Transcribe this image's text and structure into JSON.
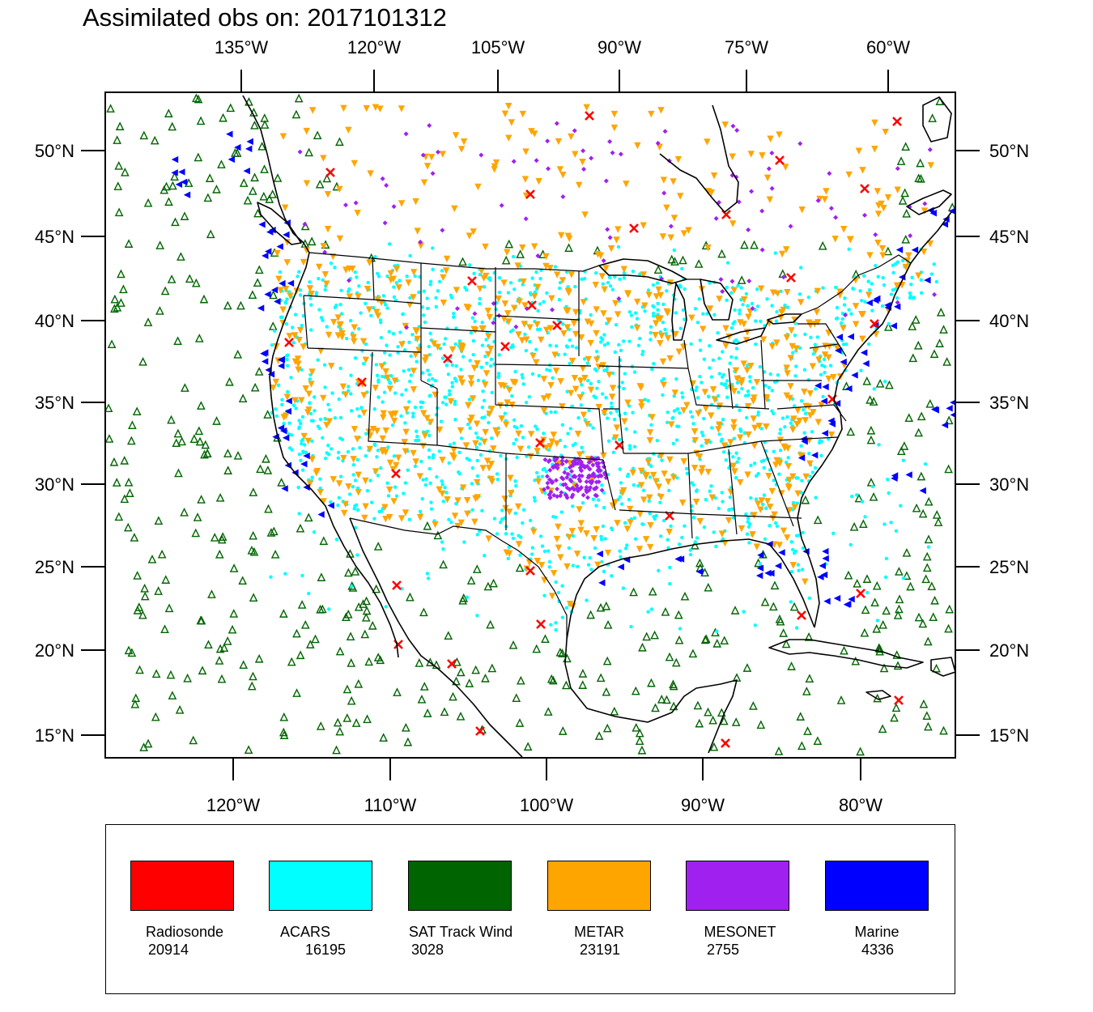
{
  "title": "Assimilated obs on: 2017101312",
  "top_lon_labels": [
    "135°W",
    "120°W",
    "105°W",
    "90°W",
    "75°W",
    "60°W"
  ],
  "bottom_lon_labels": [
    "120°W",
    "110°W",
    "100°W",
    "90°W",
    "80°W"
  ],
  "lat_labels": [
    "50°N",
    "45°N",
    "40°N",
    "35°N",
    "30°N",
    "25°N",
    "20°N",
    "15°N"
  ],
  "colors": {
    "radiosonde": "#ff0000",
    "acars": "#00ffff",
    "sat_track_wind": "#006400",
    "metar": "#ffa500",
    "mesonet": "#a020f0",
    "marine": "#0000ff"
  },
  "legend": [
    {
      "key": "radiosonde",
      "label": "Radiosonde",
      "count": "20914",
      "color": "#ff0000"
    },
    {
      "key": "acars",
      "label": "ACARS",
      "count": "16195",
      "color": "#00ffff"
    },
    {
      "key": "sat_track_wind",
      "label": "SAT Track Wind",
      "count": "3028",
      "color": "#006400"
    },
    {
      "key": "metar",
      "label": "METAR",
      "count": "23191",
      "color": "#ffa500"
    },
    {
      "key": "mesonet",
      "label": "MESONET",
      "count": "2755",
      "color": "#a020f0"
    },
    {
      "key": "marine",
      "label": "Marine",
      "count": "4336",
      "color": "#0000ff"
    }
  ],
  "markers": {
    "radiosonde": "x",
    "acars": "dot",
    "sat_track_wind": "open-triangle-up",
    "metar": "filled-triangle-down",
    "mesonet": "diamond",
    "marine": "filled-triangle-left"
  }
}
